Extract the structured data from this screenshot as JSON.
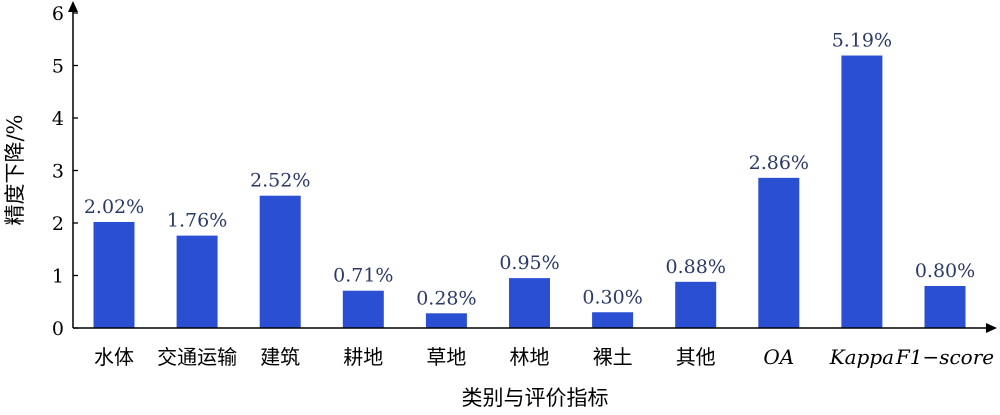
{
  "chart_data": {
    "type": "bar",
    "categories": [
      "水体",
      "交通运输",
      "建筑",
      "耕地",
      "草地",
      "林地",
      "裸土",
      "其他",
      "OA",
      "Kappa",
      "F1−score"
    ],
    "italic_categories": [
      "OA",
      "Kappa",
      "F1−score"
    ],
    "values": [
      2.02,
      1.76,
      2.52,
      0.71,
      0.28,
      0.95,
      0.3,
      0.88,
      2.86,
      5.19,
      0.8
    ],
    "value_labels": [
      "2.02%",
      "1.76%",
      "2.52%",
      "0.71%",
      "0.28%",
      "0.95%",
      "0.30%",
      "0.88%",
      "2.86%",
      "5.19%",
      "0.80%"
    ],
    "y_ticks": [
      "0",
      "1",
      "2",
      "3",
      "4",
      "5",
      "6"
    ],
    "ylim": [
      0,
      6
    ],
    "xlabel": "类别与评价指标",
    "ylabel": "精度下降/%",
    "title": "",
    "grid": false,
    "legend": "none",
    "colors": {
      "bar": "#2a4fd3",
      "value_label": "#2b3a67",
      "axis": "#000000"
    }
  }
}
